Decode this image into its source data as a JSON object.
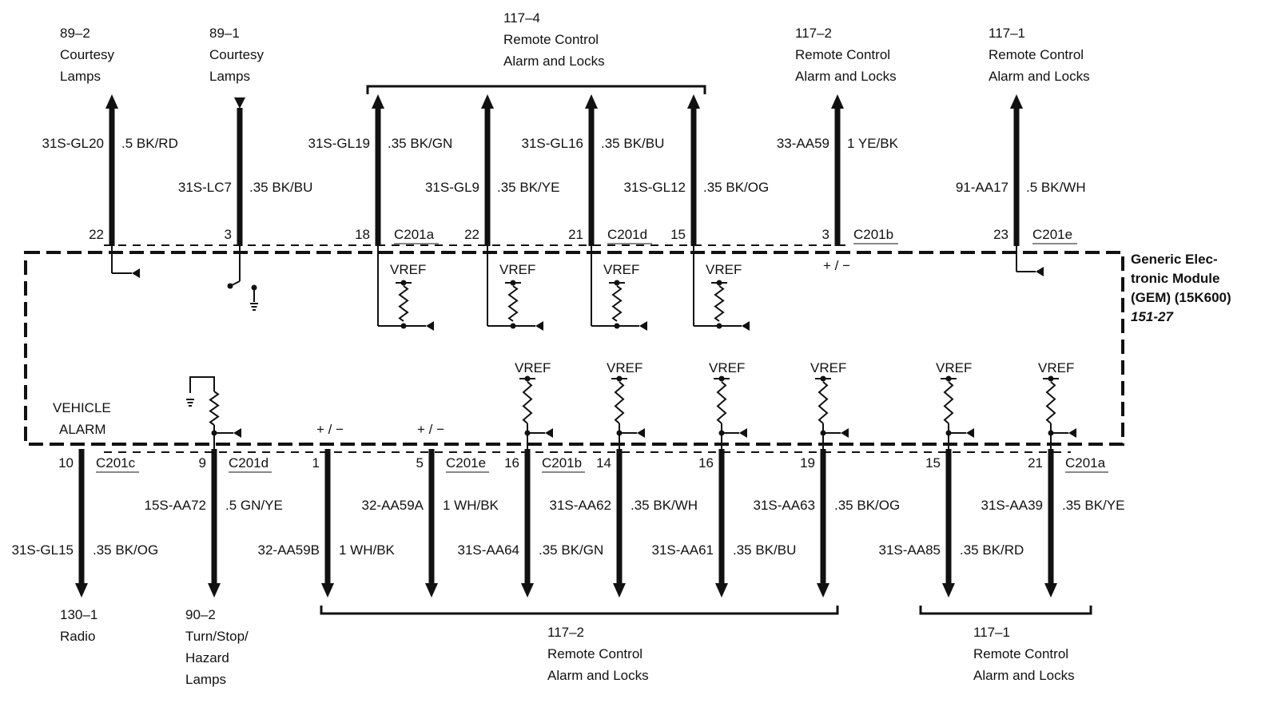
{
  "module": {
    "name_lines": [
      "Generic Elec-",
      "tronic Module",
      "(GEM) (15K600)"
    ],
    "page_ref": "151-27",
    "vref_label": "VREF",
    "polarity_label": "+ / −",
    "vehicle_alarm_lines": [
      "VEHICLE",
      "ALARM"
    ]
  },
  "top_destinations": [
    {
      "lines": [
        "89–2",
        "Courtesy",
        "Lamps"
      ]
    },
    {
      "lines": [
        "89–1",
        "Courtesy",
        "Lamps"
      ]
    },
    {
      "lines": [
        "117–4",
        "Remote Control",
        "Alarm and Locks"
      ]
    },
    {
      "lines": [
        "117–2",
        "Remote Control",
        "Alarm and Locks"
      ]
    },
    {
      "lines": [
        "117–1",
        "Remote Control",
        "Alarm and Locks"
      ]
    }
  ],
  "top_wires": [
    {
      "circuit": "31S-GL20",
      "color": ".5 BK/RD",
      "pin": "22",
      "connector": ""
    },
    {
      "circuit": "31S-LC7",
      "color": ".35 BK/BU",
      "pin": "3",
      "connector": ""
    },
    {
      "circuit": "31S-GL19",
      "color": ".35 BK/GN",
      "pin": "18",
      "connector": "C201a"
    },
    {
      "circuit": "31S-GL9",
      "color": ".35 BK/YE",
      "pin": "22",
      "connector": ""
    },
    {
      "circuit": "31S-GL16",
      "color": ".35 BK/BU",
      "pin": "21",
      "connector": "C201d"
    },
    {
      "circuit": "31S-GL12",
      "color": ".35 BK/OG",
      "pin": "15",
      "connector": ""
    },
    {
      "circuit": "33-AA59",
      "color": "1 YE/BK",
      "pin": "3",
      "connector": "C201b"
    },
    {
      "circuit": "91-AA17",
      "color": ".5 BK/WH",
      "pin": "23",
      "connector": "C201e"
    }
  ],
  "bottom_wires": [
    {
      "circuit": "31S-GL15",
      "color": ".35 BK/OG",
      "pin": "10",
      "connector": "C201c"
    },
    {
      "circuit": "15S-AA72",
      "color": ".5 GN/YE",
      "pin": "9",
      "connector": "C201d"
    },
    {
      "circuit": "32-AA59B",
      "color": "1 WH/BK",
      "pin": "1",
      "connector": ""
    },
    {
      "circuit": "32-AA59A",
      "color": "1 WH/BK",
      "pin": "5",
      "connector": "C201e"
    },
    {
      "circuit": "31S-AA64",
      "color": ".35 BK/GN",
      "pin": "16",
      "connector": "C201b"
    },
    {
      "circuit": "31S-AA62",
      "color": ".35 BK/WH",
      "pin": "14",
      "connector": ""
    },
    {
      "circuit": "31S-AA61",
      "color": ".35 BK/BU",
      "pin": "16",
      "connector": ""
    },
    {
      "circuit": "31S-AA63",
      "color": ".35 BK/OG",
      "pin": "19",
      "connector": ""
    },
    {
      "circuit": "31S-AA85",
      "color": ".35 BK/RD",
      "pin": "15",
      "connector": ""
    },
    {
      "circuit": "31S-AA39",
      "color": ".35 BK/YE",
      "pin": "21",
      "connector": "C201a"
    }
  ],
  "bottom_destinations": [
    {
      "lines": [
        "130–1",
        "Radio"
      ]
    },
    {
      "lines": [
        "90–2",
        "Turn/Stop/",
        "Hazard",
        "Lamps"
      ]
    },
    {
      "lines": [
        "117–2",
        "Remote Control",
        "Alarm and Locks"
      ]
    },
    {
      "lines": [
        "117–1",
        "Remote Control",
        "Alarm and Locks"
      ]
    }
  ]
}
